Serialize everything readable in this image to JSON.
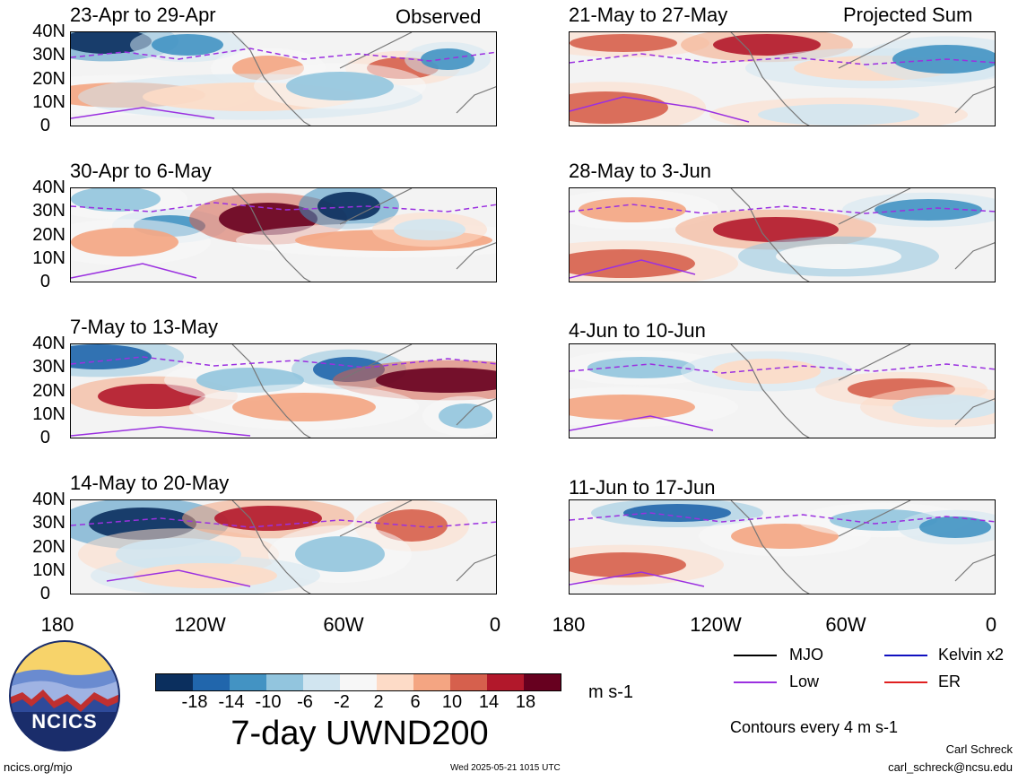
{
  "labels": {
    "observed": "Observed",
    "projected": "Projected Sum"
  },
  "panels": [
    {
      "title": "23-Apr to 29-Apr"
    },
    {
      "title": "30-Apr to 6-May"
    },
    {
      "title": "7-May to 13-May"
    },
    {
      "title": "14-May to 20-May"
    },
    {
      "title": "21-May to 27-May"
    },
    {
      "title": "28-May to 3-Jun"
    },
    {
      "title": "4-Jun to 10-Jun"
    },
    {
      "title": "11-Jun to 17-Jun"
    }
  ],
  "y_ticks": [
    "40N",
    "30N",
    "20N",
    "10N",
    "0"
  ],
  "x_ticks": [
    "180",
    "120W",
    "60W",
    "0"
  ],
  "colorbar": {
    "colors": [
      "#0b2f5e",
      "#2166ac",
      "#4393c3",
      "#92c5de",
      "#d1e5f0",
      "#f7f7f7",
      "#fddbc7",
      "#f4a582",
      "#d6604d",
      "#b2182b",
      "#67001f"
    ],
    "labels": [
      "-18",
      "-14",
      "-10",
      "-6",
      "-2",
      "2",
      "6",
      "10",
      "14",
      "18"
    ],
    "units": "m s-1"
  },
  "legend": [
    {
      "label": "MJO",
      "color": "#000000"
    },
    {
      "label": "Kelvin x2",
      "color": "#1010c0"
    },
    {
      "label": "Low",
      "color": "#9b30e0"
    },
    {
      "label": "ER",
      "color": "#e02020"
    }
  ],
  "main_title": "7-day UWND200",
  "contour_note": "Contours every 4 m s-1",
  "logo_text": "NCICS",
  "footer": {
    "left": "ncics.org/mjo",
    "center": "Wed 2025-05-21 1015 UTC",
    "author": "Carl Schreck",
    "email": "carl_schreck@ncsu.edu"
  }
}
